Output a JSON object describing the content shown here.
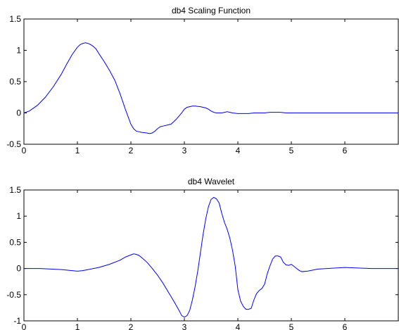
{
  "chart_data": [
    {
      "type": "line",
      "title": "db4 Scaling Function",
      "xlabel": "",
      "ylabel": "",
      "xlim": [
        0,
        7
      ],
      "ylim": [
        -0.5,
        1.5
      ],
      "xticks": [
        0,
        1,
        2,
        3,
        4,
        5,
        6
      ],
      "yticks": [
        -0.5,
        0,
        0.5,
        1,
        1.5
      ],
      "xtick_labels": [
        "0",
        "1",
        "2",
        "3",
        "4",
        "5",
        "6"
      ],
      "ytick_labels": [
        "-0.5",
        "0",
        "0.5",
        "1",
        "1.5"
      ],
      "grid": false,
      "color": "#0000ff",
      "x": [
        0.0,
        0.1,
        0.25,
        0.4,
        0.55,
        0.7,
        0.8,
        0.9,
        1.0,
        1.05,
        1.1,
        1.15,
        1.2,
        1.25,
        1.3,
        1.35,
        1.4,
        1.5,
        1.6,
        1.7,
        1.8,
        1.9,
        2.0,
        2.05,
        2.1,
        2.15,
        2.2,
        2.3,
        2.35,
        2.4,
        2.45,
        2.5,
        2.55,
        2.6,
        2.7,
        2.75,
        2.8,
        2.85,
        2.9,
        2.95,
        3.0,
        3.05,
        3.1,
        3.15,
        3.2,
        3.3,
        3.4,
        3.45,
        3.5,
        3.55,
        3.6,
        3.7,
        3.8,
        3.85,
        3.9,
        4.0,
        4.1,
        4.2,
        4.3,
        4.4,
        4.5,
        4.6,
        4.7,
        4.8,
        4.9,
        5.0,
        5.5,
        6.0,
        6.5,
        7.0
      ],
      "y": [
        0.0,
        0.03,
        0.12,
        0.25,
        0.42,
        0.62,
        0.78,
        0.93,
        1.05,
        1.09,
        1.11,
        1.12,
        1.11,
        1.09,
        1.06,
        1.02,
        0.95,
        0.82,
        0.68,
        0.52,
        0.3,
        0.05,
        -0.18,
        -0.25,
        -0.29,
        -0.3,
        -0.31,
        -0.32,
        -0.33,
        -0.32,
        -0.29,
        -0.25,
        -0.22,
        -0.21,
        -0.19,
        -0.18,
        -0.14,
        -0.1,
        -0.05,
        0.0,
        0.06,
        0.09,
        0.1,
        0.11,
        0.11,
        0.1,
        0.08,
        0.06,
        0.03,
        0.01,
        0.0,
        0.0,
        0.02,
        0.01,
        0.0,
        -0.01,
        -0.01,
        -0.01,
        0.0,
        0.0,
        0.0,
        0.01,
        0.01,
        0.01,
        0.0,
        0.0,
        0.0,
        0.0,
        0.0,
        0.0
      ]
    },
    {
      "type": "line",
      "title": "db4 Wavelet",
      "xlabel": "",
      "ylabel": "",
      "xlim": [
        0,
        7
      ],
      "ylim": [
        -1,
        1.5
      ],
      "xticks": [
        0,
        1,
        2,
        3,
        4,
        5,
        6
      ],
      "yticks": [
        -1,
        -0.5,
        0,
        0.5,
        1,
        1.5
      ],
      "xtick_labels": [
        "0",
        "1",
        "2",
        "3",
        "4",
        "5",
        "6"
      ],
      "ytick_labels": [
        "-1",
        "-0.5",
        "0",
        "0.5",
        "1",
        "1.5"
      ],
      "grid": false,
      "color": "#0000ff",
      "x": [
        0.0,
        0.3,
        0.5,
        0.7,
        0.9,
        1.0,
        1.1,
        1.2,
        1.4,
        1.6,
        1.8,
        1.9,
        2.0,
        2.05,
        2.1,
        2.15,
        2.2,
        2.3,
        2.4,
        2.5,
        2.6,
        2.7,
        2.8,
        2.9,
        2.95,
        3.0,
        3.05,
        3.1,
        3.15,
        3.2,
        3.25,
        3.3,
        3.35,
        3.4,
        3.45,
        3.5,
        3.55,
        3.6,
        3.65,
        3.7,
        3.75,
        3.8,
        3.85,
        3.9,
        3.95,
        4.0,
        4.05,
        4.1,
        4.15,
        4.2,
        4.25,
        4.3,
        4.35,
        4.4,
        4.45,
        4.5,
        4.55,
        4.6,
        4.65,
        4.7,
        4.75,
        4.8,
        4.85,
        4.9,
        4.95,
        5.0,
        5.05,
        5.1,
        5.15,
        5.2,
        5.3,
        5.5,
        6.0,
        6.5,
        7.0
      ],
      "y": [
        0.0,
        0.0,
        -0.01,
        -0.02,
        -0.04,
        -0.05,
        -0.04,
        -0.02,
        0.02,
        0.08,
        0.16,
        0.22,
        0.26,
        0.28,
        0.27,
        0.25,
        0.21,
        0.12,
        0.0,
        -0.13,
        -0.28,
        -0.45,
        -0.62,
        -0.8,
        -0.9,
        -0.93,
        -0.9,
        -0.8,
        -0.6,
        -0.35,
        -0.05,
        0.3,
        0.65,
        0.95,
        1.18,
        1.32,
        1.36,
        1.33,
        1.25,
        1.05,
        0.88,
        0.75,
        0.58,
        0.35,
        0.05,
        -0.4,
        -0.62,
        -0.72,
        -0.78,
        -0.78,
        -0.76,
        -0.6,
        -0.48,
        -0.42,
        -0.38,
        -0.3,
        -0.1,
        0.05,
        0.18,
        0.24,
        0.24,
        0.22,
        0.12,
        0.07,
        0.06,
        0.08,
        0.04,
        0.0,
        -0.04,
        -0.06,
        -0.05,
        -0.01,
        0.02,
        0.0,
        0.0
      ]
    }
  ]
}
